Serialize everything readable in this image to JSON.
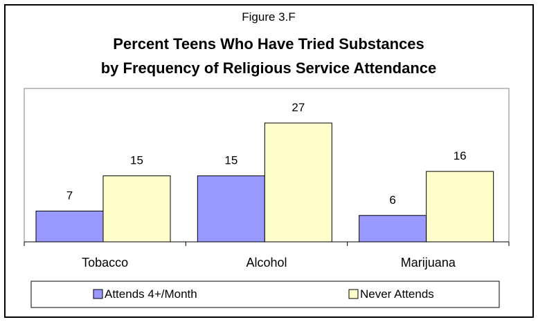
{
  "chart_data": {
    "type": "bar",
    "figure_label": "Figure 3.F",
    "title_lines": [
      "Percent Teens Who Have Tried Substances",
      "by Frequency of Religious Service Attendance"
    ],
    "categories": [
      "Tobacco",
      "Alcohol",
      "Marijuana"
    ],
    "series": [
      {
        "name": "Attends 4+/Month",
        "values": [
          7,
          15,
          6
        ],
        "color": "#9999ff"
      },
      {
        "name": "Never Attends",
        "values": [
          15,
          27,
          16
        ],
        "color": "#ffffcc"
      }
    ],
    "ylim": [
      0,
      30
    ],
    "grid": false,
    "legend_position": "bottom",
    "colors": {
      "frame": "#000000",
      "plot_border": "#808080",
      "background": "#ffffff"
    }
  }
}
